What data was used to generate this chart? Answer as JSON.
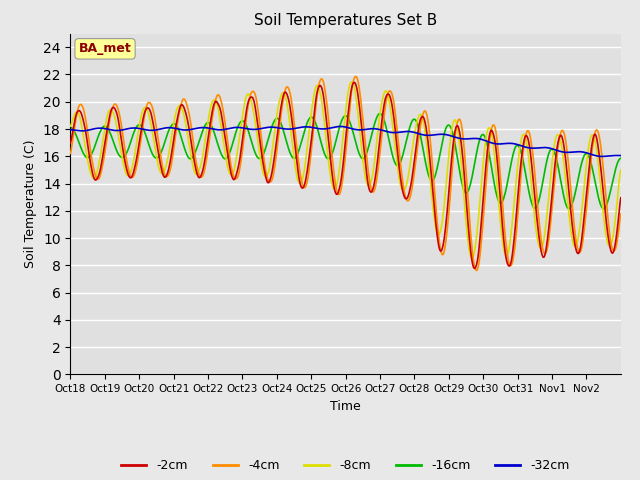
{
  "title": "Soil Temperatures Set B",
  "xlabel": "Time",
  "ylabel": "Soil Temperature (C)",
  "ylim": [
    0,
    25
  ],
  "yticks": [
    0,
    2,
    4,
    6,
    8,
    10,
    12,
    14,
    16,
    18,
    20,
    22,
    24
  ],
  "x_labels": [
    "Oct 18",
    "Oct 19",
    "Oct 20",
    "Oct 21",
    "Oct 22",
    "Oct 23",
    "Oct 24",
    "Oct 25",
    "Oct 26",
    "Oct 27",
    "Oct 28",
    "Oct 29",
    "Oct 30",
    "Oct 31",
    "Nov 1",
    "Nov 2"
  ],
  "annotation_text": "BA_met",
  "annotation_color": "#8B0000",
  "annotation_bg": "#FFFF99",
  "fig_bg_color": "#E8E8E8",
  "plot_bg_color": "#E0E0E0",
  "grid_color": "#FFFFFF",
  "colors": {
    "-2cm": "#CC0000",
    "-4cm": "#FF8C00",
    "-8cm": "#DDDD00",
    "-16cm": "#00BB00",
    "-32cm": "#0000CC"
  },
  "linewidth": 1.2
}
